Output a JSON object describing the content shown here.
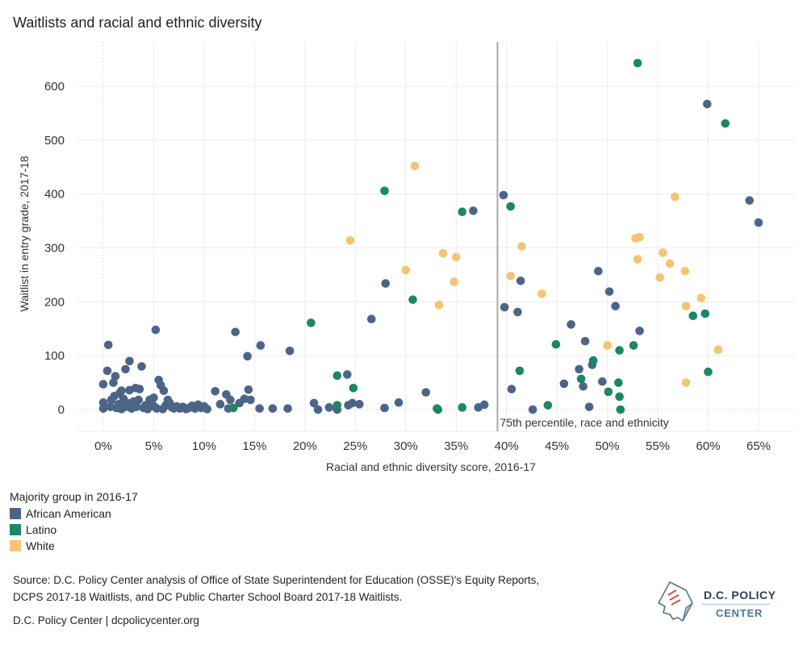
{
  "title": "Waitlists and racial and ethnic diversity",
  "colors": {
    "African American": "#4c6587",
    "Latino": "#1b8764",
    "White": "#f4c472",
    "grid": "#ececec",
    "reference_line": "#a9a9a9",
    "zero_line": "#c8c8c8"
  },
  "legend": {
    "title": "Majority group in 2016-17",
    "items": [
      {
        "label": "African American",
        "color": "#4c6587"
      },
      {
        "label": "Latino",
        "color": "#1b8764"
      },
      {
        "label": "White",
        "color": "#f4c472"
      }
    ]
  },
  "source": {
    "line1": "Source: D.C. Policy Center analysis of Office of State Superintendent for Education (OSSE)'s Equity Reports,",
    "line2": "DCPS 2017-18 Waitlists, and DC Public Charter School Board 2017-18 Waitlists.",
    "credit": "D.C. Policy Center | dcpolicycenter.org"
  },
  "logo": {
    "line1": "D.C. POLICY",
    "line2": "CENTER"
  },
  "chart_data": {
    "type": "scatter",
    "title": "Waitlists and racial and ethnic diversity",
    "xlabel": "Racial and ethnic diversity score, 2016-17",
    "ylabel": "Waitlist in entry grade, 2017-18",
    "xlim": [
      -0.03,
      0.68
    ],
    "ylim": [
      -20,
      650
    ],
    "x_ticks": [
      0,
      0.05,
      0.1,
      0.15,
      0.2,
      0.25,
      0.3,
      0.35,
      0.4,
      0.45,
      0.5,
      0.55,
      0.6,
      0.65
    ],
    "x_tick_labels": [
      "0%",
      "5%",
      "10%",
      "15%",
      "20%",
      "25%",
      "30%",
      "35%",
      "40%",
      "45%",
      "50%",
      "55%",
      "60%",
      "65%"
    ],
    "y_ticks": [
      0,
      100,
      200,
      300,
      400,
      500,
      600
    ],
    "y_tick_labels": [
      "0",
      "100",
      "200",
      "300",
      "400",
      "500",
      "600"
    ],
    "grid": true,
    "legend_position": "bottom-left",
    "reference_line": {
      "x": 0.391,
      "label": "75th percentile, race and ethnicity"
    },
    "series": [
      {
        "name": "African American",
        "points": [
          [
            0.0,
            2
          ],
          [
            0.0,
            13
          ],
          [
            0.0,
            47
          ],
          [
            0.005,
            120
          ],
          [
            0.004,
            72
          ],
          [
            0.007,
            5
          ],
          [
            0.008,
            18
          ],
          [
            0.01,
            50
          ],
          [
            0.011,
            25
          ],
          [
            0.012,
            62
          ],
          [
            0.013,
            3
          ],
          [
            0.015,
            10
          ],
          [
            0.016,
            30
          ],
          [
            0.018,
            35
          ],
          [
            0.018,
            1
          ],
          [
            0.02,
            20
          ],
          [
            0.022,
            75
          ],
          [
            0.022,
            5
          ],
          [
            0.024,
            12
          ],
          [
            0.026,
            90
          ],
          [
            0.026,
            36
          ],
          [
            0.028,
            2
          ],
          [
            0.03,
            15
          ],
          [
            0.032,
            40
          ],
          [
            0.033,
            5
          ],
          [
            0.035,
            18
          ],
          [
            0.036,
            38
          ],
          [
            0.038,
            80
          ],
          [
            0.04,
            3
          ],
          [
            0.042,
            8
          ],
          [
            0.044,
            1
          ],
          [
            0.046,
            18
          ],
          [
            0.048,
            12
          ],
          [
            0.05,
            22
          ],
          [
            0.051,
            5
          ],
          [
            0.052,
            148
          ],
          [
            0.053,
            2
          ],
          [
            0.055,
            55
          ],
          [
            0.057,
            45
          ],
          [
            0.059,
            1
          ],
          [
            0.06,
            35
          ],
          [
            0.062,
            8
          ],
          [
            0.064,
            18
          ],
          [
            0.066,
            12
          ],
          [
            0.068,
            4
          ],
          [
            0.07,
            2
          ],
          [
            0.073,
            6
          ],
          [
            0.076,
            2
          ],
          [
            0.079,
            5
          ],
          [
            0.082,
            1
          ],
          [
            0.085,
            3
          ],
          [
            0.088,
            7
          ],
          [
            0.091,
            2
          ],
          [
            0.094,
            9
          ],
          [
            0.097,
            3
          ],
          [
            0.1,
            6
          ],
          [
            0.103,
            1
          ],
          [
            0.111,
            34
          ],
          [
            0.116,
            10
          ],
          [
            0.122,
            28
          ],
          [
            0.124,
            2
          ],
          [
            0.126,
            18
          ],
          [
            0.131,
            144
          ],
          [
            0.135,
            12
          ],
          [
            0.14,
            20
          ],
          [
            0.143,
            99
          ],
          [
            0.144,
            37
          ],
          [
            0.146,
            18
          ],
          [
            0.155,
            2
          ],
          [
            0.156,
            119
          ],
          [
            0.168,
            2
          ],
          [
            0.183,
            2
          ],
          [
            0.185,
            109
          ],
          [
            0.209,
            12
          ],
          [
            0.213,
            0
          ],
          [
            0.224,
            4
          ],
          [
            0.232,
            0
          ],
          [
            0.242,
            65
          ],
          [
            0.243,
            8
          ],
          [
            0.247,
            12
          ],
          [
            0.254,
            10
          ],
          [
            0.266,
            168
          ],
          [
            0.279,
            3
          ],
          [
            0.28,
            234
          ],
          [
            0.293,
            13
          ],
          [
            0.32,
            32
          ],
          [
            0.367,
            369
          ],
          [
            0.372,
            4
          ],
          [
            0.378,
            9
          ],
          [
            0.397,
            398
          ],
          [
            0.398,
            190
          ],
          [
            0.405,
            38
          ],
          [
            0.411,
            181
          ],
          [
            0.414,
            239
          ],
          [
            0.426,
            0
          ],
          [
            0.457,
            48
          ],
          [
            0.464,
            158
          ],
          [
            0.472,
            75
          ],
          [
            0.476,
            43
          ],
          [
            0.478,
            127
          ],
          [
            0.482,
            5
          ],
          [
            0.485,
            83
          ],
          [
            0.491,
            257
          ],
          [
            0.495,
            52
          ],
          [
            0.502,
            219
          ],
          [
            0.508,
            192
          ],
          [
            0.532,
            146
          ],
          [
            0.599,
            567
          ],
          [
            0.641,
            388
          ],
          [
            0.65,
            347
          ]
        ]
      },
      {
        "name": "Latino",
        "points": [
          [
            0.129,
            3
          ],
          [
            0.206,
            161
          ],
          [
            0.232,
            63
          ],
          [
            0.232,
            8
          ],
          [
            0.248,
            40
          ],
          [
            0.279,
            406
          ],
          [
            0.307,
            204
          ],
          [
            0.331,
            2
          ],
          [
            0.332,
            0
          ],
          [
            0.356,
            367
          ],
          [
            0.356,
            4
          ],
          [
            0.404,
            377
          ],
          [
            0.413,
            72
          ],
          [
            0.441,
            8
          ],
          [
            0.449,
            121
          ],
          [
            0.474,
            57
          ],
          [
            0.486,
            91
          ],
          [
            0.501,
            33
          ],
          [
            0.511,
            50
          ],
          [
            0.512,
            110
          ],
          [
            0.512,
            24
          ],
          [
            0.513,
            0
          ],
          [
            0.526,
            119
          ],
          [
            0.53,
            643
          ],
          [
            0.585,
            174
          ],
          [
            0.597,
            178
          ],
          [
            0.6,
            70
          ],
          [
            0.617,
            531
          ]
        ]
      },
      {
        "name": "White",
        "points": [
          [
            0.245,
            314
          ],
          [
            0.3,
            259
          ],
          [
            0.309,
            452
          ],
          [
            0.333,
            194
          ],
          [
            0.337,
            290
          ],
          [
            0.348,
            237
          ],
          [
            0.35,
            283
          ],
          [
            0.404,
            248
          ],
          [
            0.415,
            303
          ],
          [
            0.435,
            215
          ],
          [
            0.5,
            119
          ],
          [
            0.528,
            318
          ],
          [
            0.53,
            279
          ],
          [
            0.532,
            320
          ],
          [
            0.552,
            245
          ],
          [
            0.555,
            291
          ],
          [
            0.562,
            271
          ],
          [
            0.567,
            395
          ],
          [
            0.577,
            257
          ],
          [
            0.578,
            192
          ],
          [
            0.578,
            50
          ],
          [
            0.593,
            207
          ],
          [
            0.61,
            111
          ]
        ]
      }
    ]
  }
}
